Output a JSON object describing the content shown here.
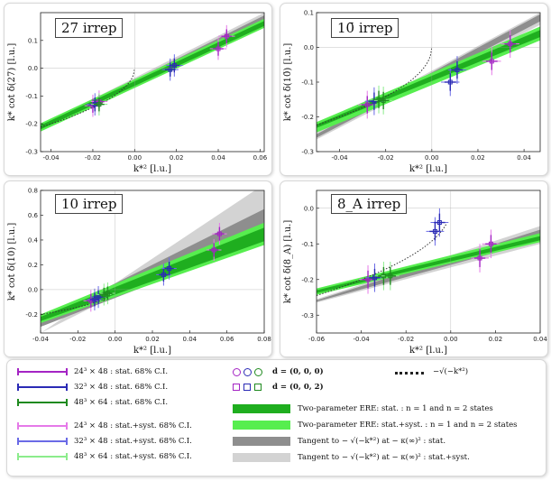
{
  "colors": {
    "stat_band": "#1fae1f",
    "syst_band": "#57ee4f",
    "tan_stat": "#8e8e8e",
    "tan_syst": "#d3d3d3",
    "L24_stat": "#a424c4",
    "L32_stat": "#2b2bb5",
    "L48_stat": "#1f8a1f",
    "L24_syst": "#e57ae8",
    "L32_syst": "#6a6ae6",
    "L48_syst": "#8cec8c"
  },
  "chart_data": [
    {
      "type": "scatter",
      "title": "27 irrep",
      "xlabel": "k*² [l.u.]",
      "ylabel": "k* cot δ(27) [l.u.]",
      "xlim": [
        -0.045,
        0.062
      ],
      "ylim": [
        -0.3,
        0.2
      ],
      "xticks": [
        "-0.04",
        "-0.02",
        "0.00",
        "0.02",
        "0.04",
        "0.06"
      ],
      "xtick_values": [
        -0.04,
        -0.02,
        0,
        0.02,
        0.04,
        0.06
      ],
      "yticks": [
        "-0.3",
        "-0.2",
        "-0.1",
        "0.0",
        "0.1"
      ],
      "ytick_values": [
        -0.3,
        -0.2,
        -0.1,
        0,
        0.1
      ],
      "bands": {
        "syst": {
          "at_xmin": [
            -0.228,
            -0.198
          ],
          "at_xmax": [
            0.145,
            0.178
          ]
        },
        "stat": {
          "at_xmin": [
            -0.22,
            -0.205
          ],
          "at_xmax": [
            0.152,
            0.17
          ]
        },
        "tan_syst": {
          "at_xmin": [
            -0.225,
            -0.205
          ],
          "at_xmax": [
            0.16,
            0.2
          ]
        },
        "tan_stat": {
          "at_xmin": [
            -0.22,
            -0.21
          ],
          "at_xmax": [
            0.17,
            0.19
          ]
        }
      },
      "curve_end": 0.0,
      "points": [
        {
          "x": -0.02,
          "y": -0.135,
          "L": "24"
        },
        {
          "x": -0.017,
          "y": -0.12,
          "L": "24"
        },
        {
          "x": -0.019,
          "y": -0.13,
          "L": "32"
        },
        {
          "x": -0.017,
          "y": -0.13,
          "L": "48"
        },
        {
          "x": 0.017,
          "y": -0.005,
          "L": "32"
        },
        {
          "x": 0.019,
          "y": 0.01,
          "L": "32"
        },
        {
          "x": 0.04,
          "y": 0.07,
          "L": "24"
        },
        {
          "x": 0.044,
          "y": 0.115,
          "L": "24"
        }
      ]
    },
    {
      "type": "scatter",
      "title": "10̄ irrep",
      "xlabel": "k*² [l.u.]",
      "ylabel": "k* cot δ(10̄) [l.u.]",
      "xlim": [
        -0.05,
        0.047
      ],
      "ylim": [
        -0.3,
        0.1
      ],
      "xticks": [
        "-0.04",
        "-0.02",
        "0.00",
        "0.02",
        "0.04"
      ],
      "xtick_values": [
        -0.04,
        -0.02,
        0,
        0.02,
        0.04
      ],
      "yticks": [
        "-0.3",
        "-0.2",
        "-0.1",
        "0.0",
        "0.1"
      ],
      "ytick_values": [
        -0.3,
        -0.2,
        -0.1,
        0,
        0.1
      ],
      "bands": {
        "syst": {
          "at_xmin": [
            -0.245,
            -0.215
          ],
          "at_xmax": [
            0.02,
            0.06
          ]
        },
        "stat": {
          "at_xmin": [
            -0.232,
            -0.222
          ],
          "at_xmax": [
            0.03,
            0.05
          ]
        },
        "tan_syst": {
          "at_xmin": [
            -0.265,
            -0.245
          ],
          "at_xmax": [
            0.065,
            0.1
          ]
        },
        "tan_stat": {
          "at_xmin": [
            -0.26,
            -0.25
          ],
          "at_xmax": [
            0.075,
            0.095
          ]
        }
      },
      "curve_end": 0.0,
      "points": [
        {
          "x": -0.028,
          "y": -0.165,
          "L": "24"
        },
        {
          "x": -0.025,
          "y": -0.155,
          "L": "32"
        },
        {
          "x": -0.023,
          "y": -0.15,
          "L": "48"
        },
        {
          "x": -0.021,
          "y": -0.153,
          "L": "48"
        },
        {
          "x": 0.008,
          "y": -0.1,
          "L": "32"
        },
        {
          "x": 0.011,
          "y": -0.065,
          "L": "32"
        },
        {
          "x": 0.026,
          "y": -0.04,
          "L": "24"
        },
        {
          "x": 0.034,
          "y": 0.01,
          "L": "24"
        }
      ]
    },
    {
      "type": "scatter",
      "title": "10 irrep",
      "xlabel": "k*² [l.u.]",
      "ylabel": "k* cot δ(10) [l.u.]",
      "xlim": [
        -0.04,
        0.08
      ],
      "ylim": [
        -0.35,
        0.8
      ],
      "xticks": [
        "-0.04",
        "-0.02",
        "0.00",
        "0.02",
        "0.04",
        "0.06",
        "0.08"
      ],
      "xtick_values": [
        -0.04,
        -0.02,
        0,
        0.02,
        0.04,
        0.06,
        0.08
      ],
      "yticks": [
        "-0.2",
        "0.0",
        "0.2",
        "0.4",
        "0.6",
        "0.8"
      ],
      "ytick_values": [
        -0.2,
        0,
        0.2,
        0.4,
        0.6,
        0.8
      ],
      "bands": {
        "syst": {
          "at_xmin": [
            -0.27,
            -0.2
          ],
          "at_xmax": [
            0.36,
            0.54
          ]
        },
        "stat": {
          "at_xmin": [
            -0.255,
            -0.22
          ],
          "at_xmax": [
            0.39,
            0.5
          ]
        },
        "tan_syst": {
          "at_xmin": [
            -0.35,
            -0.35
          ],
          "at_xmax": [
            0.55,
            0.85
          ]
        },
        "tan_stat": {
          "at_xmin": [
            -0.3,
            -0.25
          ],
          "at_xmax": [
            0.4,
            0.65
          ]
        }
      },
      "curve_end": -0.003,
      "points": [
        {
          "x": -0.013,
          "y": -0.09,
          "L": "24"
        },
        {
          "x": -0.011,
          "y": -0.08,
          "L": "32"
        },
        {
          "x": -0.009,
          "y": -0.06,
          "L": "32"
        },
        {
          "x": -0.006,
          "y": -0.04,
          "L": "48"
        },
        {
          "x": -0.004,
          "y": -0.03,
          "L": "48"
        },
        {
          "x": 0.026,
          "y": 0.12,
          "L": "32"
        },
        {
          "x": 0.029,
          "y": 0.17,
          "L": "32"
        },
        {
          "x": 0.053,
          "y": 0.32,
          "L": "24"
        },
        {
          "x": 0.056,
          "y": 0.45,
          "L": "24"
        }
      ]
    },
    {
      "type": "scatter",
      "title": "8_A irrep",
      "xlabel": "k*² [l.u.]",
      "ylabel": "k* cot δ(8_A) [l.u.]",
      "xlim": [
        -0.06,
        0.04
      ],
      "ylim": [
        -0.35,
        0.05
      ],
      "xticks": [
        "-0.06",
        "-0.04",
        "-0.02",
        "0.00",
        "0.02",
        "0.04"
      ],
      "xtick_values": [
        -0.06,
        -0.04,
        -0.02,
        0,
        0.02,
        0.04
      ],
      "yticks": [
        "-0.3",
        "-0.2",
        "-0.1",
        "0.0"
      ],
      "ytick_values": [
        -0.3,
        -0.2,
        -0.1,
        0
      ],
      "bands": {
        "syst": {
          "at_xmin": [
            -0.243,
            -0.225
          ],
          "at_xmax": [
            -0.095,
            -0.07
          ]
        },
        "stat": {
          "at_xmin": [
            -0.238,
            -0.23
          ],
          "at_xmax": [
            -0.09,
            -0.078
          ]
        },
        "tan_syst": {
          "at_xmin": [
            -0.265,
            -0.255
          ],
          "at_xmax": [
            -0.1,
            -0.05
          ]
        },
        "tan_stat": {
          "at_xmin": [
            -0.262,
            -0.258
          ],
          "at_xmax": [
            -0.09,
            -0.06
          ]
        }
      },
      "curve_end": -0.002,
      "points": [
        {
          "x": -0.037,
          "y": -0.2,
          "L": "24"
        },
        {
          "x": -0.034,
          "y": -0.195,
          "L": "32"
        },
        {
          "x": -0.03,
          "y": -0.19,
          "L": "48"
        },
        {
          "x": -0.027,
          "y": -0.19,
          "L": "48"
        },
        {
          "x": -0.007,
          "y": -0.065,
          "L": "32"
        },
        {
          "x": -0.005,
          "y": -0.04,
          "L": "32"
        },
        {
          "x": 0.013,
          "y": -0.14,
          "L": "24"
        },
        {
          "x": 0.018,
          "y": -0.1,
          "L": "24"
        }
      ]
    }
  ],
  "legend": {
    "errbars": [
      {
        "label": "24³ × 48 : stat. 68% C.I.",
        "color": "#a424c4"
      },
      {
        "label": "32³ × 48 : stat. 68% C.I.",
        "color": "#2b2bb5"
      },
      {
        "label": "48³ × 64 : stat. 68% C.I.",
        "color": "#1f8a1f"
      },
      {
        "label": "24³ × 48 : stat.+syst. 68% C.I.",
        "color": "#e57ae8"
      },
      {
        "label": "32³ × 48 : stat.+syst. 68% C.I.",
        "color": "#6a6ae6"
      },
      {
        "label": "48³ × 64 : stat.+syst. 68% C.I.",
        "color": "#8cec8c"
      }
    ],
    "frame_d000": "d = (0, 0, 0)",
    "frame_d002": "d = (0, 0, 2)",
    "curve_label": "−√(−k*²)",
    "bands": [
      {
        "label": "Two-parameter ERE: stat. : n = 1 and n = 2 states",
        "color": "#1fae1f"
      },
      {
        "label": "Two-parameter ERE: stat.+syst. : n = 1 and n = 2 states",
        "color": "#57ee4f"
      },
      {
        "label": "Tangent to − √(−k*²) at − κ(∞)² : stat.",
        "color": "#8e8e8e"
      },
      {
        "label": "Tangent to − √(−k*²) at − κ(∞)² : stat.+syst.",
        "color": "#d3d3d3"
      }
    ]
  }
}
